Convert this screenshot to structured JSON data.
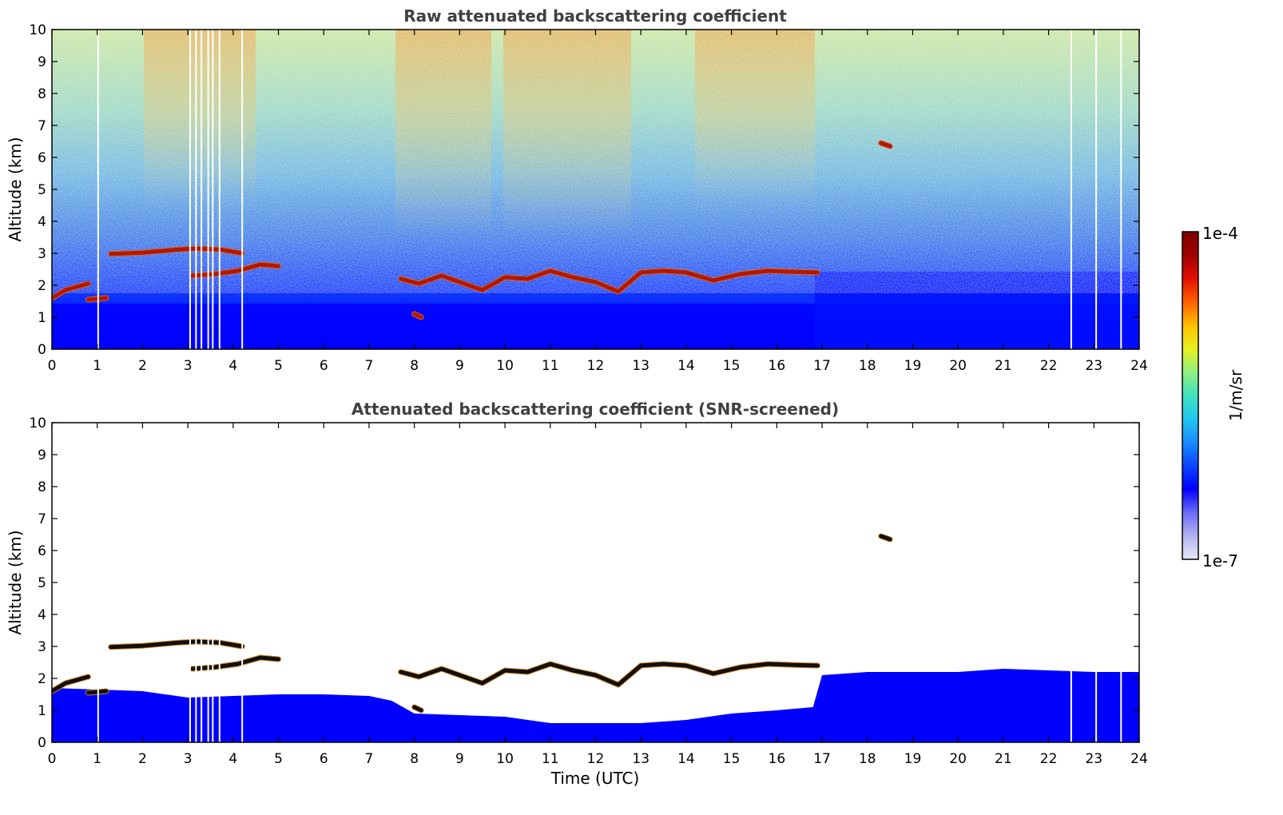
{
  "chart_data": [
    {
      "type": "heatmap",
      "title": "Raw attenuated backscattering coefficient",
      "xlabel": "",
      "ylabel": "Altitude (km)",
      "xlim": [
        0,
        24
      ],
      "ylim": [
        0,
        10
      ],
      "x_ticks": [
        "0",
        "1",
        "2",
        "3",
        "4",
        "5",
        "6",
        "7",
        "8",
        "9",
        "10",
        "11",
        "12",
        "13",
        "14",
        "15",
        "16",
        "17",
        "18",
        "19",
        "20",
        "21",
        "22",
        "23",
        "24"
      ],
      "y_ticks": [
        "0",
        "1",
        "2",
        "3",
        "4",
        "5",
        "6",
        "7",
        "8",
        "9",
        "10"
      ],
      "grid": false,
      "cloud_layers": [
        {
          "t": [
            1.3,
            2.0,
            2.8,
            3.2,
            3.7,
            4.2
          ],
          "alt": [
            2.98,
            3.02,
            3.12,
            3.15,
            3.12,
            3.0
          ]
        },
        {
          "t": [
            3.1,
            3.6,
            4.1,
            4.6,
            5.0
          ],
          "alt": [
            2.3,
            2.35,
            2.45,
            2.65,
            2.6
          ]
        },
        {
          "t": [
            0.0,
            0.3,
            0.8
          ],
          "alt": [
            1.6,
            1.85,
            2.05
          ]
        },
        {
          "t": [
            0.8,
            1.2
          ],
          "alt": [
            1.55,
            1.6
          ]
        },
        {
          "t": [
            7.7,
            8.1,
            8.6,
            9.0,
            9.5,
            10.0,
            10.5,
            11.0,
            11.5,
            12.0,
            12.5,
            13.0,
            13.5,
            14.0,
            14.6,
            15.2,
            15.8,
            16.4,
            16.9
          ],
          "alt": [
            2.2,
            2.05,
            2.3,
            2.1,
            1.85,
            2.25,
            2.2,
            2.45,
            2.25,
            2.1,
            1.8,
            2.4,
            2.45,
            2.4,
            2.15,
            2.35,
            2.45,
            2.42,
            2.4
          ]
        },
        {
          "t": [
            8.0,
            8.15
          ],
          "alt": [
            1.1,
            1.0
          ]
        },
        {
          "t": [
            18.3,
            18.5
          ],
          "alt": [
            6.45,
            6.35
          ]
        }
      ]
    },
    {
      "type": "heatmap",
      "title": "Attenuated backscattering coefficient (SNR-screened)",
      "xlabel": "Time (UTC)",
      "ylabel": "Altitude (km)",
      "xlim": [
        0,
        24
      ],
      "ylim": [
        0,
        10
      ],
      "x_ticks": [
        "0",
        "1",
        "2",
        "3",
        "4",
        "5",
        "6",
        "7",
        "8",
        "9",
        "10",
        "11",
        "12",
        "13",
        "14",
        "15",
        "16",
        "17",
        "18",
        "19",
        "20",
        "21",
        "22",
        "23",
        "24"
      ],
      "y_ticks": [
        "0",
        "1",
        "2",
        "3",
        "4",
        "5",
        "6",
        "7",
        "8",
        "9",
        "10"
      ],
      "grid": false,
      "screened_boundary": {
        "t": [
          0,
          1,
          2,
          3,
          4,
          5,
          6,
          7,
          7.5,
          8,
          9,
          10,
          11,
          12,
          13,
          14,
          15,
          16,
          16.8,
          17,
          18,
          19,
          20,
          21,
          22,
          23,
          24
        ],
        "alt": [
          1.7,
          1.65,
          1.6,
          1.4,
          1.45,
          1.5,
          1.5,
          1.45,
          1.3,
          0.9,
          0.85,
          0.8,
          0.6,
          0.6,
          0.6,
          0.7,
          0.9,
          1.0,
          1.1,
          2.1,
          2.2,
          2.2,
          2.2,
          2.3,
          2.25,
          2.2,
          2.2
        ]
      }
    }
  ],
  "colorbar": {
    "label": "1/m/sr",
    "max_label": "1e-4",
    "min_label": "1e-7",
    "scale": "log",
    "range": [
      1e-07,
      0.0001
    ],
    "colormap": [
      "#e8e8f8",
      "#b4b4f0",
      "#6a6af8",
      "#0000ff",
      "#0a44ff",
      "#1a8cff",
      "#20c8f0",
      "#40e0c0",
      "#90f080",
      "#e8f020",
      "#ffc000",
      "#ff6000",
      "#e01000",
      "#a00000",
      "#800000"
    ]
  }
}
